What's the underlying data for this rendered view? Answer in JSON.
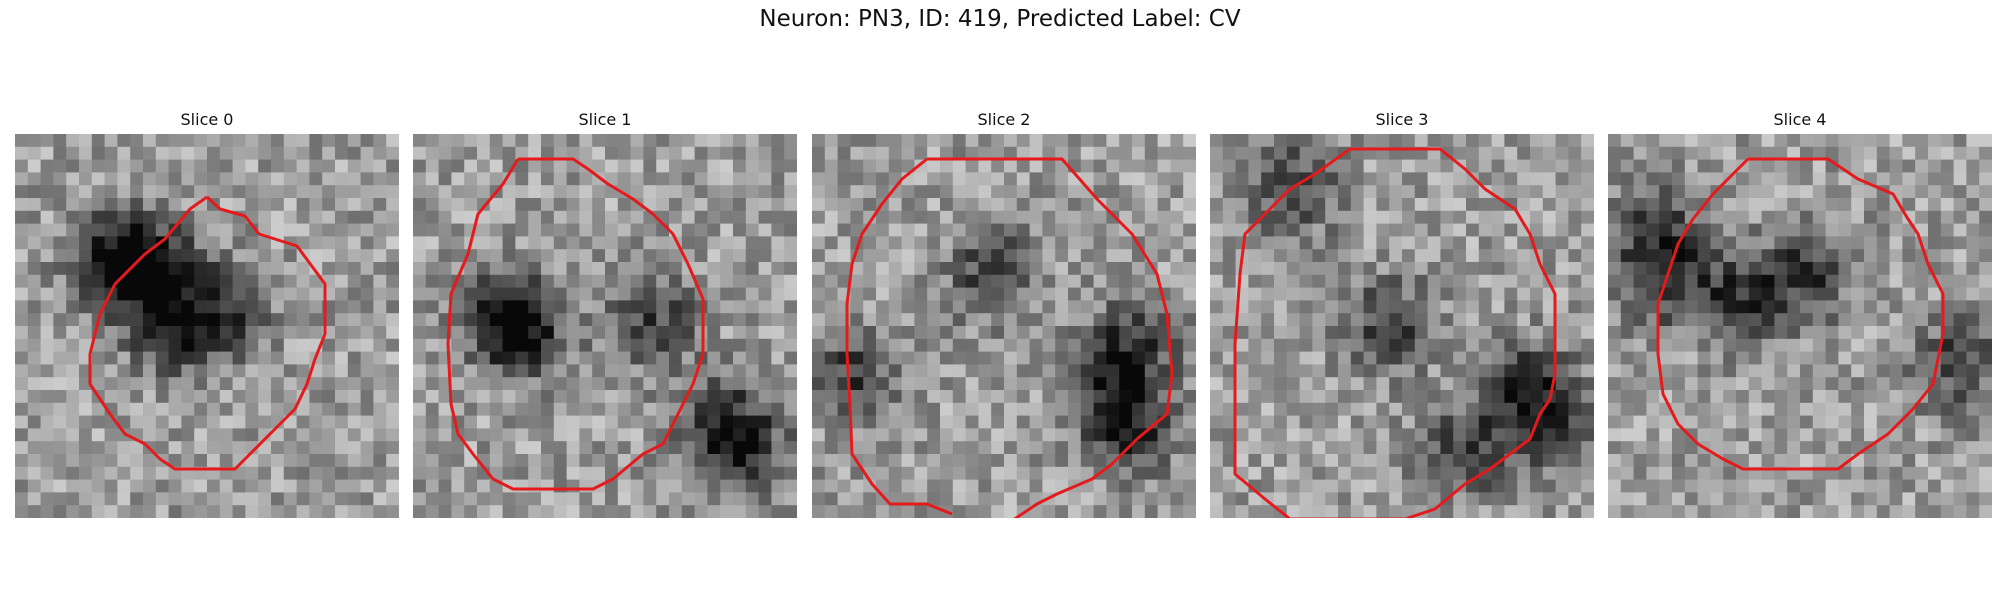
{
  "figure": {
    "title": "Neuron: PN3, ID: 419, Predicted Label: CV",
    "contour_color": "#e41a1c"
  },
  "panels": [
    {
      "title": "Slice 0"
    },
    {
      "title": "Slice 1"
    },
    {
      "title": "Slice 2"
    },
    {
      "title": "Slice 3"
    },
    {
      "title": "Slice 4"
    }
  ]
}
